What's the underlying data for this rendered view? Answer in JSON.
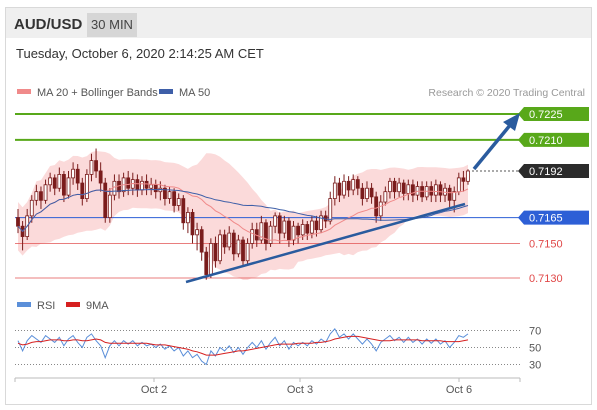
{
  "header": {
    "symbol": "AUD/USD",
    "timeframe": "30 MIN",
    "datetime": "Tuesday, October 6, 2020 2:14:25 AM CET"
  },
  "legend": {
    "ma20": "MA 20 + Bollinger Bands",
    "ma50": "MA 50",
    "credit": "Research © 2020 Trading Central",
    "rsi": "RSI",
    "ma9": "9MA"
  },
  "colors": {
    "candle": "#7a1c1c",
    "bollinger": "#fbdada",
    "ma20": "#f08a8a",
    "ma50": "#3e5fa8",
    "resistance": "#58a81a",
    "pivot": "#2d5fd6",
    "support": "#e04848",
    "arrow": "#2a5b9e",
    "rsi": "#5b8fd9",
    "rsi_ma": "#d62020"
  },
  "chart_data": {
    "type": "candlestick",
    "price_range": [
      0.7123,
      0.724
    ],
    "levels": [
      {
        "value": 0.7225,
        "label": "0.7225",
        "kind": "resistance"
      },
      {
        "value": 0.721,
        "label": "0.7210",
        "kind": "resistance"
      },
      {
        "value": 0.7192,
        "label": "0.7192",
        "kind": "last"
      },
      {
        "value": 0.7165,
        "label": "0.7165",
        "kind": "pivot"
      },
      {
        "value": 0.715,
        "label": "0.7150",
        "kind": "support"
      },
      {
        "value": 0.713,
        "label": "0.7130",
        "kind": "support"
      }
    ],
    "x_labels": [
      "Oct 2",
      "Oct 3",
      "Oct 6"
    ],
    "rsi_ticks": [
      70,
      50,
      30
    ],
    "candles": [
      [
        0.7165,
        0.716,
        0.7156,
        0.717
      ],
      [
        0.716,
        0.7154,
        0.7146,
        0.7163
      ],
      [
        0.7154,
        0.7166,
        0.7152,
        0.717
      ],
      [
        0.7166,
        0.7175,
        0.7162,
        0.7178
      ],
      [
        0.7175,
        0.718,
        0.7172,
        0.7184
      ],
      [
        0.718,
        0.7175,
        0.717,
        0.7183
      ],
      [
        0.7175,
        0.7184,
        0.7173,
        0.7187
      ],
      [
        0.7184,
        0.7188,
        0.718,
        0.7191
      ],
      [
        0.7188,
        0.7182,
        0.7178,
        0.719
      ],
      [
        0.7182,
        0.719,
        0.718,
        0.7194
      ],
      [
        0.719,
        0.7178,
        0.7174,
        0.7192
      ],
      [
        0.7178,
        0.7188,
        0.7176,
        0.7192
      ],
      [
        0.7188,
        0.7193,
        0.7184,
        0.7197
      ],
      [
        0.7193,
        0.7185,
        0.7181,
        0.7196
      ],
      [
        0.7185,
        0.7176,
        0.7172,
        0.7188
      ],
      [
        0.7176,
        0.719,
        0.7174,
        0.7193
      ],
      [
        0.719,
        0.7198,
        0.7186,
        0.7202
      ],
      [
        0.7198,
        0.7192,
        0.7188,
        0.7205
      ],
      [
        0.7192,
        0.7185,
        0.718,
        0.7197
      ],
      [
        0.7185,
        0.7165,
        0.7162,
        0.7188
      ],
      [
        0.7165,
        0.7178,
        0.7162,
        0.7182
      ],
      [
        0.7178,
        0.7186,
        0.7175,
        0.719
      ],
      [
        0.7186,
        0.718,
        0.7176,
        0.719
      ],
      [
        0.718,
        0.7188,
        0.7177,
        0.7191
      ],
      [
        0.7188,
        0.7182,
        0.7178,
        0.7192
      ],
      [
        0.7182,
        0.7187,
        0.7178,
        0.7191
      ],
      [
        0.7187,
        0.7181,
        0.7177,
        0.719
      ],
      [
        0.7181,
        0.7186,
        0.7178,
        0.7189
      ],
      [
        0.7186,
        0.7182,
        0.7178,
        0.719
      ],
      [
        0.7182,
        0.7184,
        0.7178,
        0.7188
      ],
      [
        0.7184,
        0.718,
        0.7176,
        0.7187
      ],
      [
        0.718,
        0.7182,
        0.7175,
        0.7186
      ],
      [
        0.7182,
        0.7176,
        0.7172,
        0.7184
      ],
      [
        0.7176,
        0.718,
        0.7173,
        0.7183
      ],
      [
        0.718,
        0.7172,
        0.7168,
        0.7182
      ],
      [
        0.7172,
        0.7176,
        0.7169,
        0.7179
      ],
      [
        0.7176,
        0.7162,
        0.7158,
        0.7178
      ],
      [
        0.7162,
        0.7168,
        0.7156,
        0.7171
      ],
      [
        0.7168,
        0.7155,
        0.715,
        0.717
      ],
      [
        0.7155,
        0.7158,
        0.7146,
        0.7162
      ],
      [
        0.7158,
        0.7145,
        0.714,
        0.716
      ],
      [
        0.7145,
        0.7132,
        0.7129,
        0.7148
      ],
      [
        0.7132,
        0.715,
        0.713,
        0.7153
      ],
      [
        0.715,
        0.714,
        0.7136,
        0.7154
      ],
      [
        0.714,
        0.7155,
        0.7138,
        0.7158
      ],
      [
        0.7155,
        0.7148,
        0.7144,
        0.7158
      ],
      [
        0.7148,
        0.7156,
        0.7146,
        0.716
      ],
      [
        0.7156,
        0.7144,
        0.714,
        0.7158
      ],
      [
        0.7144,
        0.7152,
        0.7142,
        0.7155
      ],
      [
        0.7152,
        0.714,
        0.7137,
        0.7154
      ],
      [
        0.714,
        0.715,
        0.7137,
        0.7153
      ],
      [
        0.715,
        0.7158,
        0.7147,
        0.7162
      ],
      [
        0.7158,
        0.7152,
        0.7148,
        0.7162
      ],
      [
        0.7152,
        0.7162,
        0.715,
        0.7166
      ],
      [
        0.7162,
        0.715,
        0.7146,
        0.7164
      ],
      [
        0.715,
        0.716,
        0.7148,
        0.7163
      ],
      [
        0.716,
        0.7166,
        0.7156,
        0.7168
      ],
      [
        0.7166,
        0.7156,
        0.715,
        0.7168
      ],
      [
        0.7156,
        0.7163,
        0.7153,
        0.7166
      ],
      [
        0.7163,
        0.7152,
        0.7148,
        0.7165
      ],
      [
        0.7152,
        0.716,
        0.7149,
        0.7163
      ],
      [
        0.716,
        0.7155,
        0.715,
        0.7162
      ],
      [
        0.7155,
        0.7161,
        0.7152,
        0.7164
      ],
      [
        0.7161,
        0.7156,
        0.7152,
        0.7163
      ],
      [
        0.7156,
        0.7163,
        0.7153,
        0.7166
      ],
      [
        0.7163,
        0.7158,
        0.7154,
        0.7166
      ],
      [
        0.7158,
        0.7166,
        0.7156,
        0.7169
      ],
      [
        0.7166,
        0.7163,
        0.7159,
        0.7169
      ],
      [
        0.7163,
        0.7176,
        0.7161,
        0.718
      ],
      [
        0.7176,
        0.7185,
        0.7172,
        0.7189
      ],
      [
        0.7185,
        0.7178,
        0.7174,
        0.7188
      ],
      [
        0.7178,
        0.7186,
        0.7176,
        0.719
      ],
      [
        0.7186,
        0.7181,
        0.7177,
        0.7189
      ],
      [
        0.7181,
        0.7187,
        0.7178,
        0.719
      ],
      [
        0.7187,
        0.7182,
        0.7178,
        0.7189
      ],
      [
        0.7182,
        0.7176,
        0.7172,
        0.7185
      ],
      [
        0.7176,
        0.7182,
        0.7174,
        0.7186
      ],
      [
        0.7182,
        0.7177,
        0.7173,
        0.7185
      ],
      [
        0.7177,
        0.7166,
        0.7162,
        0.718
      ],
      [
        0.7166,
        0.7174,
        0.7163,
        0.7178
      ],
      [
        0.7174,
        0.718,
        0.7172,
        0.7183
      ],
      [
        0.718,
        0.7186,
        0.7176,
        0.7188
      ],
      [
        0.7186,
        0.718,
        0.7176,
        0.7188
      ],
      [
        0.718,
        0.7185,
        0.7177,
        0.7188
      ],
      [
        0.7185,
        0.7179,
        0.7175,
        0.7187
      ],
      [
        0.7179,
        0.7184,
        0.7175,
        0.7187
      ],
      [
        0.7184,
        0.7178,
        0.7174,
        0.7187
      ],
      [
        0.7178,
        0.7183,
        0.7175,
        0.7186
      ],
      [
        0.7183,
        0.7177,
        0.7174,
        0.7186
      ],
      [
        0.7177,
        0.7183,
        0.7175,
        0.7186
      ],
      [
        0.7183,
        0.7178,
        0.7174,
        0.7186
      ],
      [
        0.7178,
        0.7184,
        0.7174,
        0.7187
      ],
      [
        0.7184,
        0.7178,
        0.7174,
        0.7186
      ],
      [
        0.7178,
        0.7182,
        0.7174,
        0.7185
      ],
      [
        0.7182,
        0.7175,
        0.717,
        0.7184
      ],
      [
        0.7175,
        0.718,
        0.7168,
        0.7183
      ],
      [
        0.718,
        0.7188,
        0.7178,
        0.7191
      ],
      [
        0.7188,
        0.7186,
        0.718,
        0.7192
      ],
      [
        0.7186,
        0.7192,
        0.7184,
        0.7193
      ]
    ],
    "rsi": [
      58,
      46,
      58,
      64,
      60,
      56,
      64,
      60,
      56,
      62,
      52,
      60,
      64,
      56,
      50,
      62,
      66,
      58,
      52,
      38,
      52,
      58,
      52,
      58,
      54,
      58,
      52,
      56,
      52,
      54,
      50,
      54,
      48,
      52,
      46,
      50,
      40,
      46,
      38,
      42,
      34,
      30,
      46,
      40,
      50,
      46,
      52,
      44,
      50,
      42,
      50,
      56,
      50,
      58,
      48,
      56,
      62,
      52,
      58,
      48,
      56,
      52,
      56,
      52,
      58,
      54,
      60,
      56,
      66,
      72,
      62,
      66,
      60,
      66,
      60,
      54,
      60,
      54,
      46,
      56,
      60,
      64,
      58,
      62,
      56,
      62,
      56,
      60,
      54,
      60,
      55,
      60,
      54,
      58,
      50,
      56,
      64,
      62,
      66
    ],
    "rsi_ma": [
      55,
      53,
      54,
      56,
      57,
      57,
      58,
      59,
      59,
      59,
      58,
      58,
      59,
      59,
      58,
      58,
      59,
      60,
      59,
      56,
      55,
      55,
      55,
      55,
      55,
      55,
      55,
      55,
      55,
      54,
      53,
      53,
      53,
      52,
      51,
      50,
      49,
      48,
      46,
      45,
      43,
      41,
      41,
      41,
      42,
      43,
      44,
      45,
      46,
      46,
      47,
      48,
      49,
      50,
      51,
      52,
      53,
      54,
      54,
      54,
      54,
      55,
      55,
      55,
      55,
      56,
      56,
      57,
      58,
      60,
      61,
      62,
      63,
      63,
      63,
      62,
      61,
      60,
      59,
      58,
      58,
      58,
      59,
      59,
      59,
      59,
      59,
      59,
      58,
      58,
      58,
      58,
      58,
      57,
      57,
      57,
      57,
      58,
      59
    ]
  }
}
